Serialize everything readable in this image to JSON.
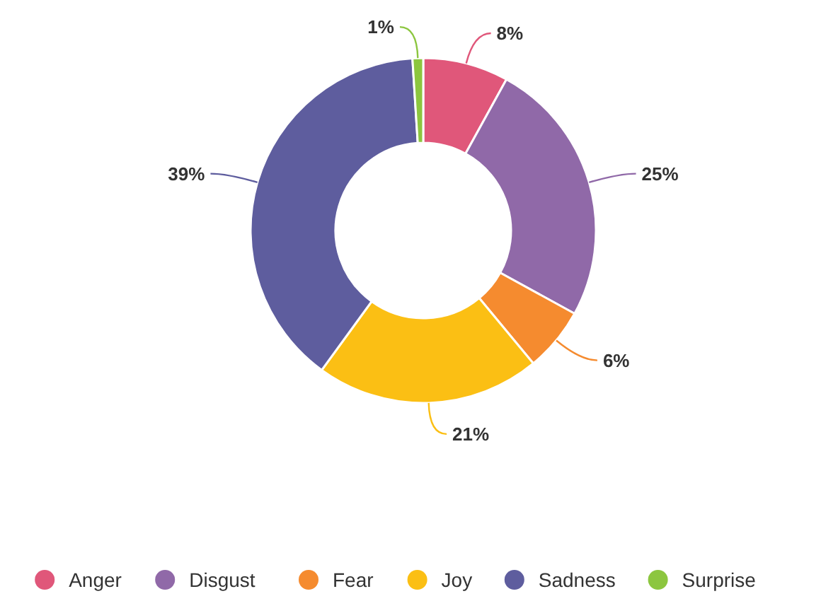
{
  "chart_data": {
    "type": "donut",
    "categories": [
      "Anger",
      "Disgust",
      "Fear",
      "Joy",
      "Sadness",
      "Surprise"
    ],
    "values": [
      8,
      25,
      6,
      21,
      39,
      1
    ],
    "value_labels": [
      "8%",
      "25%",
      "6%",
      "21%",
      "39%",
      "1%"
    ],
    "colors": [
      "#e0577a",
      "#9069a8",
      "#f58b2f",
      "#fbbf14",
      "#5e5d9e",
      "#8cc63f"
    ],
    "legend": "bottom"
  }
}
